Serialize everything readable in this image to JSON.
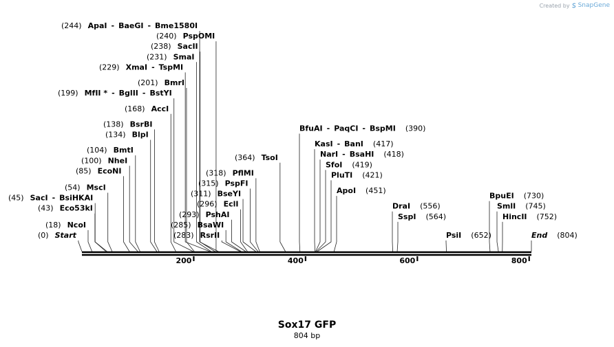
{
  "credit": {
    "prefix": "Created by",
    "brand": "SnapGene",
    "logo_icon": "snapgene-logo-icon"
  },
  "map": {
    "title": "Sox17 GFP",
    "length_label": "804 bp",
    "length": 804,
    "ticks": [
      {
        "value": 200,
        "label": "200"
      },
      {
        "value": 400,
        "label": "400"
      },
      {
        "value": 600,
        "label": "600"
      },
      {
        "value": 800,
        "label": "800"
      }
    ],
    "sites": [
      {
        "pos": 0,
        "pos_label": "(0)",
        "names": [
          "Start"
        ],
        "italic": true,
        "side": "left"
      },
      {
        "pos": 18,
        "pos_label": "(18)",
        "names": [
          "NcoI"
        ],
        "side": "left"
      },
      {
        "pos": 43,
        "pos_label": "(43)",
        "names": [
          "Eco53kI"
        ],
        "side": "left"
      },
      {
        "pos": 45,
        "pos_label": "(45)",
        "names": [
          "SacI",
          "BsiHKAI"
        ],
        "side": "left"
      },
      {
        "pos": 54,
        "pos_label": "(54)",
        "names": [
          "MscI"
        ],
        "side": "left"
      },
      {
        "pos": 85,
        "pos_label": "(85)",
        "names": [
          "EcoNI"
        ],
        "side": "left"
      },
      {
        "pos": 100,
        "pos_label": "(100)",
        "names": [
          "NheI"
        ],
        "side": "left"
      },
      {
        "pos": 104,
        "pos_label": "(104)",
        "names": [
          "BmtI"
        ],
        "side": "left"
      },
      {
        "pos": 134,
        "pos_label": "(134)",
        "names": [
          "BlpI"
        ],
        "side": "left"
      },
      {
        "pos": 138,
        "pos_label": "(138)",
        "names": [
          "BsrBI"
        ],
        "side": "left"
      },
      {
        "pos": 168,
        "pos_label": "(168)",
        "names": [
          "AccI"
        ],
        "side": "left"
      },
      {
        "pos": 199,
        "pos_label": "(199)",
        "names": [
          "MfII *",
          "BglII",
          "BstYI"
        ],
        "side": "left"
      },
      {
        "pos": 201,
        "pos_label": "(201)",
        "names": [
          "BmrI"
        ],
        "side": "left"
      },
      {
        "pos": 229,
        "pos_label": "(229)",
        "names": [
          "XmaI",
          "TspMI"
        ],
        "side": "left"
      },
      {
        "pos": 231,
        "pos_label": "(231)",
        "names": [
          "SmaI"
        ],
        "side": "left"
      },
      {
        "pos": 238,
        "pos_label": "(238)",
        "names": [
          "SacII"
        ],
        "side": "left"
      },
      {
        "pos": 240,
        "pos_label": "(240)",
        "names": [
          "PspOMI"
        ],
        "side": "left"
      },
      {
        "pos": 244,
        "pos_label": "(244)",
        "names": [
          "ApaI",
          "BaeGI",
          "Bme1580I"
        ],
        "side": "left"
      },
      {
        "pos": 283,
        "pos_label": "(283)",
        "names": [
          "RsrII"
        ],
        "side": "left"
      },
      {
        "pos": 285,
        "pos_label": "(285)",
        "names": [
          "BsaWI"
        ],
        "side": "left"
      },
      {
        "pos": 293,
        "pos_label": "(293)",
        "names": [
          "PshAI"
        ],
        "side": "left"
      },
      {
        "pos": 296,
        "pos_label": "(296)",
        "names": [
          "EclI"
        ],
        "side": "left"
      },
      {
        "pos": 311,
        "pos_label": "(311)",
        "names": [
          "BseYI"
        ],
        "side": "left"
      },
      {
        "pos": 315,
        "pos_label": "(315)",
        "names": [
          "PspFI"
        ],
        "side": "left"
      },
      {
        "pos": 318,
        "pos_label": "(318)",
        "names": [
          "PflMI"
        ],
        "side": "left"
      },
      {
        "pos": 364,
        "pos_label": "(364)",
        "names": [
          "TsoI"
        ],
        "side": "left"
      },
      {
        "pos": 390,
        "pos_label": "(390)",
        "names": [
          "BfuAI",
          "PaqCI",
          "BspMI"
        ],
        "side": "right"
      },
      {
        "pos": 417,
        "pos_label": "(417)",
        "names": [
          "KasI",
          "BanI"
        ],
        "side": "right"
      },
      {
        "pos": 418,
        "pos_label": "(418)",
        "names": [
          "NarI",
          "BsaHI"
        ],
        "side": "right"
      },
      {
        "pos": 419,
        "pos_label": "(419)",
        "names": [
          "SfoI"
        ],
        "side": "right"
      },
      {
        "pos": 421,
        "pos_label": "(421)",
        "names": [
          "PluTI"
        ],
        "side": "right"
      },
      {
        "pos": 451,
        "pos_label": "(451)",
        "names": [
          "ApoI"
        ],
        "side": "right"
      },
      {
        "pos": 556,
        "pos_label": "(556)",
        "names": [
          "DraI"
        ],
        "side": "right"
      },
      {
        "pos": 564,
        "pos_label": "(564)",
        "names": [
          "SspI"
        ],
        "side": "right"
      },
      {
        "pos": 652,
        "pos_label": "(652)",
        "names": [
          "PsiI"
        ],
        "side": "right"
      },
      {
        "pos": 730,
        "pos_label": "(730)",
        "names": [
          "BpuEI"
        ],
        "side": "right"
      },
      {
        "pos": 745,
        "pos_label": "(745)",
        "names": [
          "SmlI"
        ],
        "side": "right"
      },
      {
        "pos": 752,
        "pos_label": "(752)",
        "names": [
          "HincII"
        ],
        "side": "right"
      },
      {
        "pos": 804,
        "pos_label": "(804)",
        "names": [
          "End"
        ],
        "italic": true,
        "side": "right"
      }
    ]
  }
}
